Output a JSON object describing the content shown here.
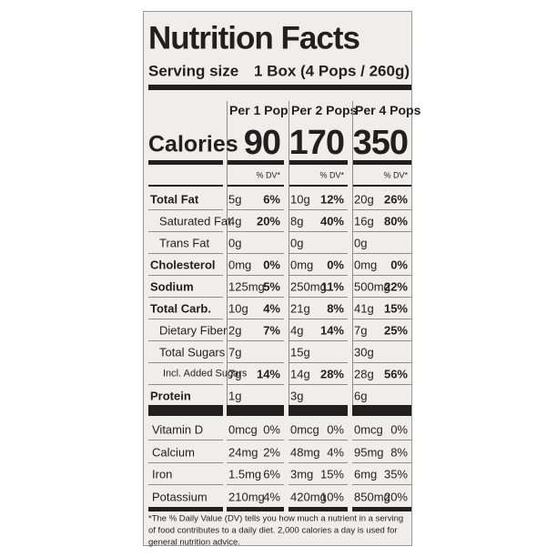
{
  "header": {
    "title": "Nutrition Facts",
    "serving_label": "Serving size",
    "serving_value": "1 Box (4 Pops / 260g)"
  },
  "columns": [
    "Per 1 Pop",
    "Per 2 Pops",
    "Per 4 Pops"
  ],
  "calories": {
    "label": "Calories",
    "values": [
      90,
      170,
      350
    ]
  },
  "dv_header": [
    "% DV*",
    "% DV*",
    "% DV*"
  ],
  "nutrients": [
    {
      "name": "Total Fat",
      "bold": true,
      "indent": 0,
      "cells": [
        {
          "amount": "5g",
          "dv": "6%"
        },
        {
          "amount": "10g",
          "dv": "12%"
        },
        {
          "amount": "20g",
          "dv": "26%"
        }
      ]
    },
    {
      "name": "Saturated Fat",
      "bold": false,
      "indent": 1,
      "cells": [
        {
          "amount": "4g",
          "dv": "20%"
        },
        {
          "amount": "8g",
          "dv": "40%"
        },
        {
          "amount": "16g",
          "dv": "80%"
        }
      ]
    },
    {
      "name": "Trans Fat",
      "bold": false,
      "indent": 1,
      "cells": [
        {
          "amount": "0g"
        },
        {
          "amount": "0g"
        },
        {
          "amount": "0g"
        }
      ]
    },
    {
      "name": "Cholesterol",
      "bold": true,
      "indent": 0,
      "cells": [
        {
          "amount": "0mg",
          "dv": "0%"
        },
        {
          "amount": "0mg",
          "dv": "0%"
        },
        {
          "amount": "0mg",
          "dv": "0%"
        }
      ]
    },
    {
      "name": "Sodium",
      "bold": true,
      "indent": 0,
      "cells": [
        {
          "amount": "125mg",
          "dv": "5%"
        },
        {
          "amount": "250mg",
          "dv": "11%"
        },
        {
          "amount": "500mg",
          "dv": "22%"
        }
      ]
    },
    {
      "name": "Total Carb.",
      "bold": true,
      "indent": 0,
      "cells": [
        {
          "amount": "10g",
          "dv": "4%"
        },
        {
          "amount": "21g",
          "dv": "8%"
        },
        {
          "amount": "41g",
          "dv": "15%"
        }
      ]
    },
    {
      "name": "Dietary Fiber",
      "bold": false,
      "indent": 1,
      "cells": [
        {
          "amount": "2g",
          "dv": "7%"
        },
        {
          "amount": "4g",
          "dv": "14%"
        },
        {
          "amount": "7g",
          "dv": "25%"
        }
      ]
    },
    {
      "name": "Total Sugars",
      "bold": false,
      "indent": 1,
      "cells": [
        {
          "amount": "7g"
        },
        {
          "amount": "15g"
        },
        {
          "amount": "30g"
        }
      ]
    },
    {
      "name": "Incl. Added Sugars",
      "bold": false,
      "indent": 2,
      "cells": [
        {
          "amount": "7g",
          "dv": "14%"
        },
        {
          "amount": "14g",
          "dv": "28%"
        },
        {
          "amount": "28g",
          "dv": "56%"
        }
      ]
    },
    {
      "name": "Protein",
      "bold": true,
      "indent": 0,
      "cells": [
        {
          "amount": "1g"
        },
        {
          "amount": "3g"
        },
        {
          "amount": "6g"
        }
      ]
    }
  ],
  "vitamins": [
    {
      "name": "Vitamin D",
      "cells": [
        {
          "amount": "0mcg",
          "dv": "0%"
        },
        {
          "amount": "0mcg",
          "dv": "0%"
        },
        {
          "amount": "0mcg",
          "dv": "0%"
        }
      ]
    },
    {
      "name": "Calcium",
      "cells": [
        {
          "amount": "24mg",
          "dv": "2%"
        },
        {
          "amount": "48mg",
          "dv": "4%"
        },
        {
          "amount": "95mg",
          "dv": "8%"
        }
      ]
    },
    {
      "name": "Iron",
      "cells": [
        {
          "amount": "1.5mg",
          "dv": "6%"
        },
        {
          "amount": "3mg",
          "dv": "15%"
        },
        {
          "amount": "6mg",
          "dv": "35%"
        }
      ]
    },
    {
      "name": "Potassium",
      "cells": [
        {
          "amount": "210mg",
          "dv": "4%"
        },
        {
          "amount": "420mg",
          "dv": "10%"
        },
        {
          "amount": "850mg",
          "dv": "20%"
        }
      ]
    }
  ],
  "footnote": "*The % Daily Value (DV) tells you how much a nutrient in a serving of food contributes to a daily diet. 2,000 calories a day is used for general nutrition advice."
}
